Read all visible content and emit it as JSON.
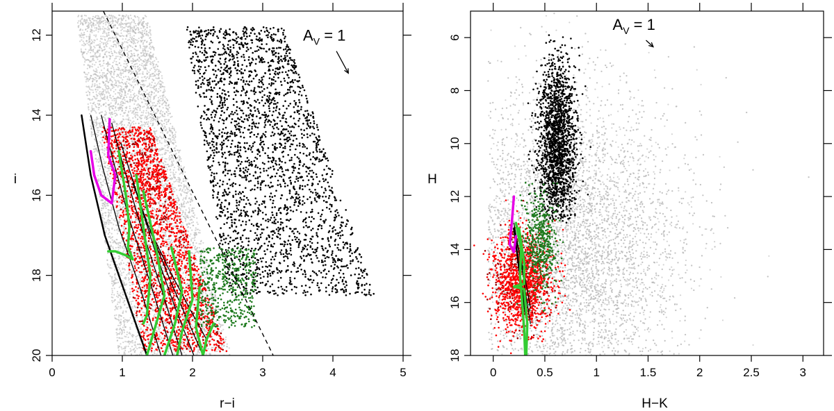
{
  "chart_data": [
    {
      "type": "scatter",
      "xlabel": "r−i",
      "ylabel": "i",
      "xlim": [
        0,
        5
      ],
      "ylim": [
        20,
        11.4
      ],
      "y_reversed": true,
      "xticks": [
        0,
        1,
        2,
        3,
        4,
        5
      ],
      "yticks": [
        12,
        14,
        16,
        18,
        20
      ],
      "annotation": {
        "text": "A",
        "subscript": "V",
        "suffix": " = 1",
        "arrow_from": [
          4.05,
          12.4
        ],
        "arrow_to": [
          4.22,
          12.95
        ]
      },
      "dashed_line": [
        [
          0.73,
          11.4
        ],
        [
          3.15,
          20
        ]
      ],
      "series_colors": {
        "field": "#b8b8b8",
        "black": "#000000",
        "red": "#ff0000",
        "darkred": "#9e0000",
        "green": "#1e7a1e",
        "isochrone_green": "#33cc33",
        "magenta": "#e600e6"
      },
      "populations": [
        {
          "color": "black",
          "count": 2600,
          "x_range": [
            1.9,
            4.7
          ],
          "y_range": [
            11.8,
            18.5
          ]
        },
        {
          "color": "red",
          "count": 2400,
          "x_range": [
            0.9,
            2.6
          ],
          "y_range": [
            14.3,
            19.9
          ]
        },
        {
          "color": "green",
          "count": 500,
          "x_range": [
            2.1,
            2.9
          ],
          "y_range": [
            17.3,
            19.3
          ]
        },
        {
          "color": "field",
          "count": 6000,
          "x_range": [
            0.3,
            2.9
          ],
          "y_range": [
            11.5,
            20
          ]
        }
      ],
      "black_tracks": [
        [
          [
            0.42,
            14.0
          ],
          [
            0.55,
            15.5
          ],
          [
            0.75,
            17.0
          ],
          [
            1.05,
            18.5
          ],
          [
            1.35,
            20.0
          ]
        ],
        [
          [
            0.55,
            14.0
          ],
          [
            0.72,
            15.3
          ],
          [
            0.95,
            16.8
          ],
          [
            1.25,
            18.3
          ],
          [
            1.55,
            20.0
          ]
        ],
        [
          [
            0.7,
            14.0
          ],
          [
            0.88,
            15.2
          ],
          [
            1.1,
            16.6
          ],
          [
            1.4,
            18.2
          ],
          [
            1.72,
            20.0
          ]
        ],
        [
          [
            0.85,
            14.2
          ],
          [
            1.02,
            15.3
          ],
          [
            1.25,
            16.7
          ],
          [
            1.55,
            18.3
          ],
          [
            1.85,
            20.0
          ]
        ],
        [
          [
            0.98,
            14.7
          ],
          [
            1.18,
            15.8
          ],
          [
            1.45,
            17.3
          ],
          [
            1.75,
            18.8
          ],
          [
            2.02,
            20.0
          ]
        ],
        [
          [
            1.15,
            15.7
          ],
          [
            1.4,
            16.9
          ],
          [
            1.7,
            18.2
          ],
          [
            1.95,
            19.2
          ],
          [
            2.15,
            20.0
          ]
        ],
        [
          [
            1.35,
            16.7
          ],
          [
            1.65,
            17.8
          ],
          [
            1.95,
            18.8
          ],
          [
            2.2,
            19.6
          ]
        ]
      ],
      "green_tracks": [
        [
          [
            0.95,
            14.9
          ],
          [
            1.05,
            16.0
          ],
          [
            1.1,
            16.8
          ],
          [
            1.08,
            17.3
          ],
          [
            1.15,
            17.6
          ],
          [
            1.05,
            17.5
          ],
          [
            0.9,
            17.4
          ],
          [
            0.8,
            17.4
          ]
        ],
        [
          [
            1.2,
            15.5
          ],
          [
            1.3,
            16.8
          ],
          [
            1.4,
            18.0
          ],
          [
            1.35,
            19.0
          ],
          [
            1.3,
            19.2
          ]
        ],
        [
          [
            1.3,
            15.9
          ],
          [
            1.5,
            17.5
          ],
          [
            1.6,
            18.5
          ],
          [
            1.45,
            19.4
          ],
          [
            1.35,
            20.0
          ]
        ],
        [
          [
            1.7,
            17.3
          ],
          [
            1.85,
            18.4
          ],
          [
            1.75,
            19.2
          ],
          [
            1.6,
            20.0
          ]
        ],
        [
          [
            1.95,
            17.4
          ],
          [
            2.0,
            18.6
          ],
          [
            1.85,
            19.4
          ],
          [
            1.78,
            20.0
          ]
        ],
        [
          [
            2.1,
            18.3
          ],
          [
            2.05,
            19.3
          ],
          [
            2.15,
            20.0
          ]
        ],
        [
          [
            2.3,
            19.2
          ],
          [
            2.2,
            19.6
          ],
          [
            2.15,
            20.0
          ]
        ]
      ],
      "magenta_track": [
        [
          0.82,
          14.1
        ],
        [
          0.8,
          15.0
        ],
        [
          0.9,
          15.5
        ],
        [
          0.85,
          16.2
        ],
        [
          0.7,
          16.0
        ],
        [
          0.6,
          15.5
        ],
        [
          0.55,
          14.9
        ]
      ]
    },
    {
      "type": "scatter",
      "xlabel": "H−K",
      "ylabel": "H",
      "xlim": [
        -0.22,
        3.2
      ],
      "ylim": [
        18,
        5.0
      ],
      "y_reversed": true,
      "xticks": [
        0,
        0.5,
        1,
        1.5,
        2,
        2.5,
        3
      ],
      "xtick_labels": [
        "0",
        "0.5",
        "1",
        "1.5",
        "2",
        "2.5",
        "3"
      ],
      "yticks": [
        6,
        8,
        10,
        12,
        14,
        16,
        18
      ],
      "annotation": {
        "text": "A",
        "subscript": "V",
        "suffix": " = 1",
        "arrow_from": [
          1.48,
          6.1
        ],
        "arrow_to": [
          1.55,
          6.35
        ]
      },
      "populations": [
        {
          "color": "black",
          "count": 1800,
          "center": [
            0.62,
            10.0
          ],
          "spread": [
            0.09,
            1.6
          ],
          "y_range": [
            5.8,
            13.0
          ]
        },
        {
          "color": "green",
          "count": 500,
          "center": [
            0.45,
            13.8
          ],
          "spread": [
            0.08,
            0.9
          ]
        },
        {
          "color": "red",
          "count": 1400,
          "center": [
            0.28,
            15.2
          ],
          "spread": [
            0.14,
            0.9
          ]
        },
        {
          "color": "field",
          "count": 9000,
          "center": [
            0.7,
            14.0
          ],
          "spread": [
            0.55,
            3.0
          ]
        }
      ],
      "black_tracks": [
        [
          [
            0.2,
            13.2
          ],
          [
            0.24,
            14.4
          ],
          [
            0.28,
            15.6
          ],
          [
            0.33,
            16.8
          ]
        ],
        [
          [
            0.2,
            13.0
          ],
          [
            0.27,
            14.5
          ],
          [
            0.32,
            15.8
          ],
          [
            0.36,
            16.8
          ]
        ],
        [
          [
            0.22,
            13.6
          ],
          [
            0.3,
            14.9
          ],
          [
            0.36,
            16.2
          ]
        ]
      ],
      "green_tracks": [
        [
          [
            0.22,
            13.0
          ],
          [
            0.27,
            14.0
          ],
          [
            0.26,
            15.0
          ],
          [
            0.28,
            16.0
          ],
          [
            0.3,
            17.0
          ],
          [
            0.31,
            18.0
          ]
        ],
        [
          [
            0.25,
            13.2
          ],
          [
            0.3,
            14.5
          ],
          [
            0.3,
            15.3
          ],
          [
            0.2,
            15.4
          ],
          [
            0.3,
            15.5
          ],
          [
            0.33,
            16.8
          ],
          [
            0.32,
            18.0
          ]
        ]
      ],
      "magenta_track": [
        [
          0.2,
          12.0
        ],
        [
          0.18,
          13.0
        ],
        [
          0.16,
          13.8
        ],
        [
          0.2,
          14.1
        ],
        [
          0.22,
          13.5
        ]
      ]
    }
  ]
}
